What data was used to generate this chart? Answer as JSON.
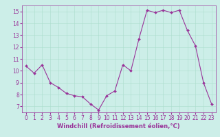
{
  "x": [
    0,
    1,
    2,
    3,
    4,
    5,
    6,
    7,
    8,
    9,
    10,
    11,
    12,
    13,
    14,
    15,
    16,
    17,
    18,
    19,
    20,
    21,
    22,
    23
  ],
  "y": [
    10.4,
    9.8,
    10.5,
    9.0,
    8.6,
    8.1,
    7.9,
    7.8,
    7.2,
    6.7,
    7.9,
    8.3,
    10.5,
    10.0,
    12.7,
    15.1,
    14.9,
    15.1,
    14.9,
    15.1,
    13.4,
    12.1,
    9.0,
    7.2
  ],
  "line_color": "#993399",
  "marker_color": "#993399",
  "bg_color": "#cceee8",
  "grid_color": "#aaddcc",
  "xlabel": "Windchill (Refroidissement éolien,°C)",
  "xlabel_color": "#993399",
  "tick_color": "#993399",
  "ylabel_ticks": [
    7,
    8,
    9,
    10,
    11,
    12,
    13,
    14,
    15
  ],
  "xlim": [
    -0.5,
    23.5
  ],
  "ylim": [
    6.5,
    15.5
  ],
  "xtick_labels": [
    "0",
    "1",
    "2",
    "3",
    "4",
    "5",
    "6",
    "7",
    "8",
    "9",
    "10",
    "11",
    "12",
    "13",
    "14",
    "15",
    "16",
    "17",
    "18",
    "19",
    "20",
    "21",
    "22",
    "23"
  ],
  "tick_fontsize": 5.5,
  "xlabel_fontsize": 6.0
}
